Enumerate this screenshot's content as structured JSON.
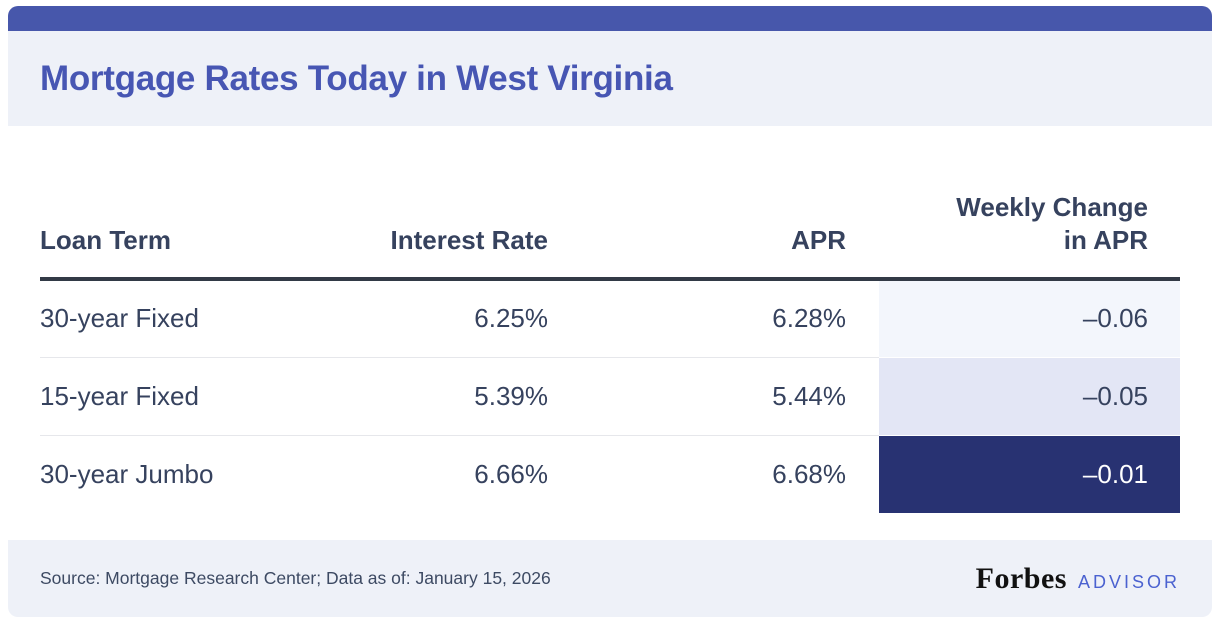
{
  "theme": {
    "top_bar_color": "#4757ab",
    "title_color": "#4756b3",
    "panel_bg": "#eef1f8",
    "text_dark": "#36425e",
    "header_rule_color": "#323a46",
    "row_divider": "#e6e7eb",
    "advisor_color": "#4b62d0",
    "source_text": "#3d4a63"
  },
  "header": {
    "title": "Mortgage Rates Today in West Virginia"
  },
  "table": {
    "columns": [
      {
        "label": "Loan Term"
      },
      {
        "label": "Interest Rate"
      },
      {
        "label": "APR"
      },
      {
        "label": "Weekly Change",
        "label2": "in APR"
      }
    ],
    "rows": [
      {
        "loan_term": "30-year Fixed",
        "interest_rate": "6.25%",
        "apr": "6.28%",
        "weekly_change": "–0.06"
      },
      {
        "loan_term": "15-year Fixed",
        "interest_rate": "5.39%",
        "apr": "5.44%",
        "weekly_change": "–0.05"
      },
      {
        "loan_term": "30-year Jumbo",
        "interest_rate": "6.66%",
        "apr": "6.68%",
        "weekly_change": "–0.01"
      }
    ],
    "change_cells": [
      {
        "bg": "#f3f6fc",
        "text": "#36425e"
      },
      {
        "bg": "#e3e6f5",
        "text": "#36425e"
      },
      {
        "bg": "#283272",
        "text": "#ffffff"
      }
    ]
  },
  "footer": {
    "source": "Source: Mortgage Research Center; Data as of: January 15, 2026",
    "brand_name": "Forbes",
    "brand_suffix": "ADVISOR"
  },
  "chart_data": {
    "type": "table",
    "title": "Mortgage Rates Today in West Virginia",
    "columns": [
      "Loan Term",
      "Interest Rate",
      "APR",
      "Weekly Change in APR"
    ],
    "rows": [
      {
        "loan_term": "30-year Fixed",
        "interest_rate_pct": 6.25,
        "apr_pct": 6.28,
        "weekly_change_in_apr": -0.06
      },
      {
        "loan_term": "15-year Fixed",
        "interest_rate_pct": 5.39,
        "apr_pct": 5.44,
        "weekly_change_in_apr": -0.05
      },
      {
        "loan_term": "30-year Jumbo",
        "interest_rate_pct": 6.66,
        "apr_pct": 6.68,
        "weekly_change_in_apr": -0.01
      }
    ],
    "source": "Source: Mortgage Research Center; Data as of: January 15, 2026"
  }
}
